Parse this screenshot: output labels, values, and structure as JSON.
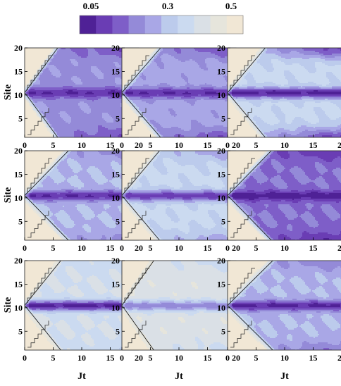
{
  "colorbar": {
    "tick_labels": [
      "0.05",
      "0.3",
      "0.5"
    ],
    "tick_values": [
      0.05,
      0.3,
      0.5
    ],
    "levels": [
      0.05,
      0.1,
      0.15,
      0.2,
      0.25,
      0.3,
      0.35,
      0.4,
      0.45,
      0.5
    ],
    "colors": [
      "#4f2196",
      "#6a3db4",
      "#7e5ec8",
      "#948ad8",
      "#a9a7e6",
      "#bccbec",
      "#cbdaf0",
      "#dae0e6",
      "#e6e5dc",
      "#f1e7d5"
    ]
  },
  "chart_data": {
    "type": "heatmap",
    "layout": "3x3 grid of contour plots",
    "xlabel": "Jt",
    "ylabel": "Site",
    "xlim": [
      0,
      20
    ],
    "ylim": [
      1,
      20
    ],
    "xticks": [
      0,
      5,
      10,
      15,
      20
    ],
    "yticks": [
      5,
      10,
      15,
      20
    ],
    "colorbar_range": [
      0.05,
      0.5
    ],
    "panels": [
      {
        "row": 1,
        "col": 1,
        "speed": 0.82,
        "center_value": 0.1,
        "bulk_value": 0.24,
        "edge_value": 0.14
      },
      {
        "row": 1,
        "col": 2,
        "speed": 0.7,
        "center_value": 0.1,
        "bulk_value": 0.27,
        "edge_value": 0.15
      },
      {
        "row": 1,
        "col": 3,
        "speed": 0.72,
        "center_value": 0.08,
        "bulk_value": 0.36,
        "edge_value": 0.12
      },
      {
        "row": 2,
        "col": 1,
        "speed": 0.62,
        "center_value": 0.1,
        "bulk_value": 0.3,
        "edge_value": 0.22
      },
      {
        "row": 2,
        "col": 2,
        "speed": 0.72,
        "center_value": 0.12,
        "bulk_value": 0.36,
        "edge_value": 0.26
      },
      {
        "row": 2,
        "col": 3,
        "speed": 0.62,
        "center_value": 0.07,
        "bulk_value": 0.2,
        "edge_value": 0.1
      },
      {
        "row": 3,
        "col": 1,
        "speed": 0.75,
        "center_value": 0.08,
        "bulk_value": 0.4,
        "edge_value": 0.36
      },
      {
        "row": 3,
        "col": 2,
        "speed": 0.85,
        "center_value": 0.22,
        "bulk_value": 0.43,
        "edge_value": 0.38
      },
      {
        "row": 3,
        "col": 3,
        "speed": 0.6,
        "center_value": 0.09,
        "bulk_value": 0.3,
        "edge_value": 0.2
      }
    ]
  }
}
